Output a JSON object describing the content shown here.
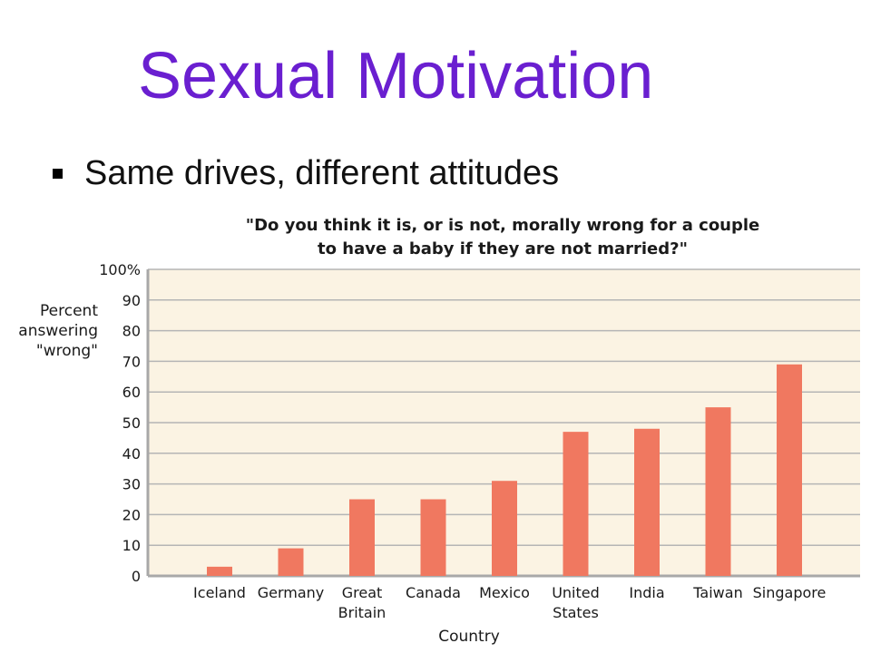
{
  "slide": {
    "title": "Sexual Motivation",
    "bullet": "Same drives, different attitudes"
  },
  "colors": {
    "title": "#6a1fd0",
    "bar": "#f07860",
    "plot_bg": "#fbf3e3",
    "grid": "#b5b5b5"
  },
  "chart_data": {
    "type": "bar",
    "title": [
      "\"Do you think it is, or is not, morally wrong for a couple",
      "to have a baby if they are not married?\""
    ],
    "categories": [
      [
        "Iceland"
      ],
      [
        "Germany"
      ],
      [
        "Great",
        "Britain"
      ],
      [
        "Canada"
      ],
      [
        "Mexico"
      ],
      [
        "United",
        "States"
      ],
      [
        "India"
      ],
      [
        "Taiwan"
      ],
      [
        "Singapore"
      ]
    ],
    "values": [
      3,
      9,
      25,
      25,
      31,
      47,
      48,
      55,
      69
    ],
    "ylabel": [
      "Percent",
      "answering",
      "\"wrong\""
    ],
    "xlabel": "Country",
    "yticks": [
      "0",
      "10",
      "20",
      "30",
      "40",
      "50",
      "60",
      "70",
      "80",
      "90",
      "100%"
    ],
    "ylim": [
      0,
      100
    ],
    "grid": true
  }
}
